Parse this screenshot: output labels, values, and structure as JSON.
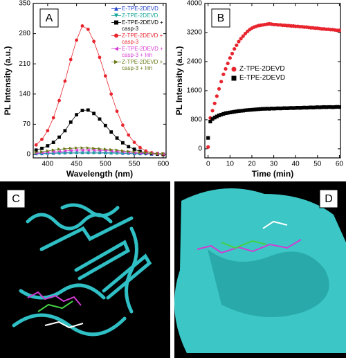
{
  "chart_data": [
    {
      "type": "line",
      "label": "A",
      "xlabel": "Wavelength (nm)",
      "ylabel": "PL Intensity (a.u.)",
      "xlim": [
        375,
        605
      ],
      "xticks": [
        400,
        450,
        500,
        550,
        600
      ],
      "ylim": [
        -8,
        350
      ],
      "yticks": [
        0,
        70,
        140,
        210,
        280,
        350
      ],
      "lines": true,
      "x": [
        380,
        390,
        400,
        410,
        420,
        430,
        440,
        450,
        460,
        470,
        480,
        490,
        500,
        510,
        520,
        530,
        540,
        550,
        560,
        570,
        580,
        590,
        600
      ],
      "series": [
        {
          "name": "E-TPE-2DEVD",
          "color": "#2244cc",
          "marker": "triangle-up",
          "values": [
            2,
            2,
            3,
            3,
            4,
            4,
            5,
            5,
            5,
            5,
            5,
            5,
            4,
            4,
            4,
            3,
            3,
            2,
            2,
            2,
            1,
            1,
            1
          ]
        },
        {
          "name": "Z-TPE-2DEVD",
          "color": "#1aa89a",
          "marker": "triangle-down",
          "values": [
            1,
            1,
            2,
            2,
            2,
            3,
            3,
            3,
            3,
            3,
            3,
            3,
            3,
            2,
            2,
            2,
            2,
            1,
            1,
            1,
            1,
            1,
            0
          ]
        },
        {
          "name": "E-TPE-2DEVD + casp-3",
          "color": "#000000",
          "marker": "square",
          "values": [
            10,
            14,
            20,
            28,
            40,
            55,
            75,
            92,
            102,
            103,
            95,
            82,
            67,
            52,
            38,
            27,
            18,
            12,
            7,
            4,
            2,
            1,
            0
          ]
        },
        {
          "name": "Z-TPE-2DEVD + casp-3",
          "color": "#e8242e",
          "marker": "circle",
          "values": [
            22,
            35,
            55,
            85,
            125,
            170,
            220,
            265,
            298,
            290,
            262,
            225,
            182,
            140,
            100,
            68,
            45,
            28,
            16,
            8,
            4,
            2,
            1
          ]
        },
        {
          "name": "E-TPE-2DEVD + casp-3 + Inh",
          "color": "#d63cd6",
          "marker": "triangle-left",
          "values": [
            3,
            4,
            5,
            6,
            7,
            8,
            9,
            10,
            10,
            10,
            10,
            9,
            9,
            8,
            7,
            6,
            5,
            4,
            3,
            3,
            2,
            2,
            1
          ]
        },
        {
          "name": "Z-TPE-2DEVD + casp-3 + Inh",
          "color": "#6b7a1a",
          "marker": "triangle-right",
          "values": [
            5,
            6,
            8,
            10,
            12,
            13,
            14,
            15,
            15,
            15,
            14,
            13,
            12,
            11,
            10,
            8,
            7,
            6,
            5,
            4,
            3,
            2,
            2
          ]
        }
      ]
    },
    {
      "type": "scatter",
      "label": "B",
      "xlabel": "Time (min)",
      "ylabel": "PL Intensity (a.u.)",
      "xlim": [
        -1.5,
        60.5
      ],
      "xticks": [
        0,
        10,
        20,
        30,
        40,
        50,
        60
      ],
      "ylim": [
        -250,
        4000
      ],
      "yticks": [
        0,
        800,
        1600,
        2400,
        3200,
        4000
      ],
      "lines": false,
      "x": [
        0,
        1,
        2,
        3,
        4,
        5,
        6,
        7,
        8,
        9,
        10,
        11,
        12,
        13,
        14,
        15,
        16,
        17,
        18,
        19,
        20,
        21,
        22,
        23,
        24,
        25,
        26,
        27,
        28,
        29,
        30,
        31,
        32,
        33,
        34,
        35,
        36,
        37,
        38,
        39,
        40,
        41,
        42,
        43,
        44,
        45,
        46,
        47,
        48,
        49,
        50,
        51,
        52,
        53,
        54,
        55,
        56,
        57,
        58,
        59,
        60
      ],
      "series": [
        {
          "name": "Z-TPE-2DEVD",
          "color": "#e8242e",
          "marker": "circle",
          "values": [
            50,
            850,
            1050,
            1250,
            1450,
            1650,
            1850,
            2050,
            2200,
            2350,
            2500,
            2620,
            2750,
            2850,
            2950,
            3030,
            3100,
            3170,
            3230,
            3280,
            3320,
            3350,
            3370,
            3390,
            3400,
            3410,
            3420,
            3430,
            3440,
            3430,
            3420,
            3420,
            3410,
            3410,
            3400,
            3400,
            3390,
            3390,
            3380,
            3380,
            3370,
            3370,
            3360,
            3360,
            3350,
            3350,
            3340,
            3330,
            3330,
            3320,
            3320,
            3310,
            3300,
            3300,
            3290,
            3290,
            3280,
            3280,
            3270,
            3260,
            3260
          ]
        },
        {
          "name": "E-TPE-2DEVD",
          "color": "#000000",
          "marker": "square",
          "values": [
            300,
            750,
            820,
            860,
            890,
            920,
            940,
            960,
            980,
            990,
            1000,
            1010,
            1020,
            1030,
            1040,
            1045,
            1050,
            1060,
            1065,
            1070,
            1075,
            1080,
            1085,
            1090,
            1095,
            1100,
            1100,
            1105,
            1100,
            1110,
            1105,
            1110,
            1115,
            1110,
            1115,
            1120,
            1115,
            1120,
            1125,
            1120,
            1125,
            1130,
            1125,
            1130,
            1135,
            1130,
            1135,
            1140,
            1135,
            1140,
            1145,
            1140,
            1145,
            1150,
            1145,
            1150,
            1150,
            1145,
            1150,
            1155,
            1150
          ]
        }
      ]
    }
  ],
  "image_panels": [
    {
      "label": "C"
    },
    {
      "label": "D"
    }
  ]
}
